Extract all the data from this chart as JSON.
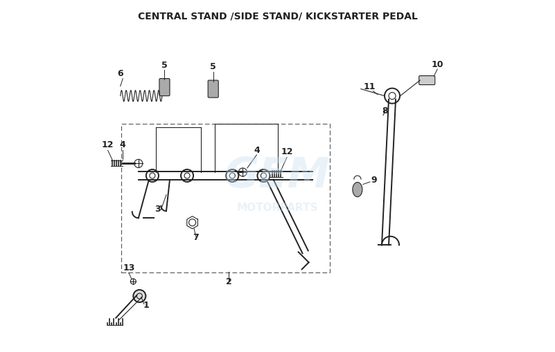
{
  "title": "CENTRAL STAND /SIDE STAND/ KICKSTARTER PEDAL",
  "bg_color": "#ffffff",
  "watermark_color": "#c8dff0",
  "watermark_alpha": 0.4,
  "line_color": "#222222",
  "font_size_labels": 9,
  "font_size_title": 10
}
